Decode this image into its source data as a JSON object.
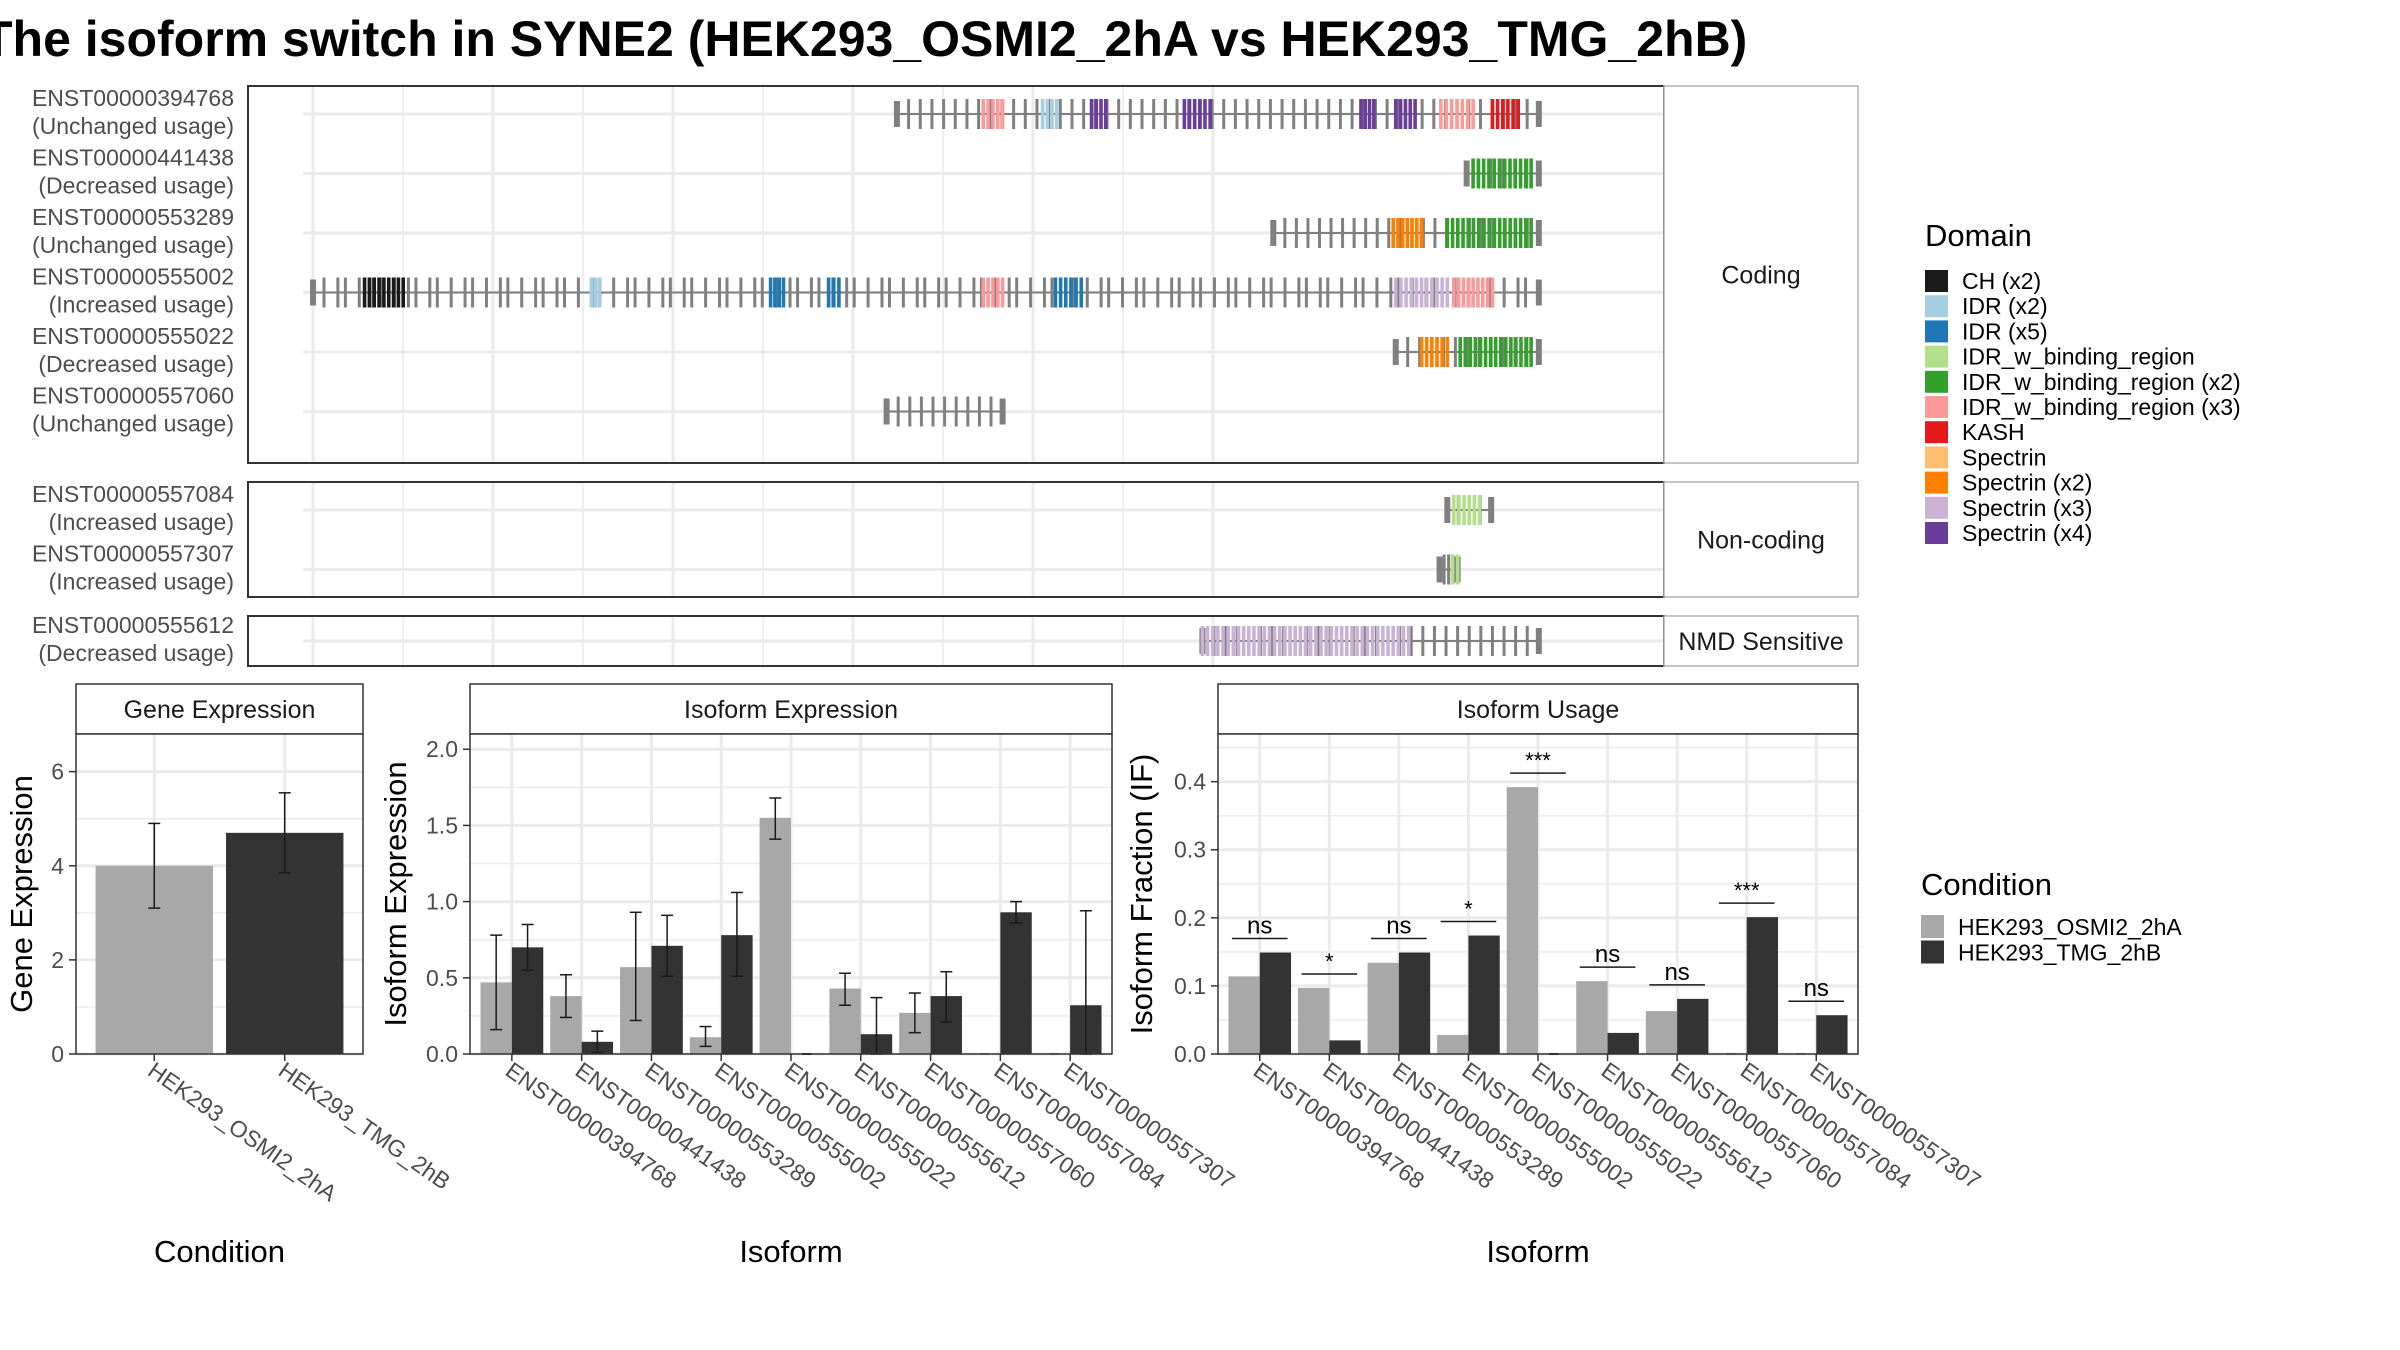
{
  "title": "The isoform switch in SYNE2 (HEK293_OSMI2_2hA vs HEK293_TMG_2hB)",
  "colors": {
    "cond1": "#a8a8a8",
    "cond2": "#333333",
    "exon": "#808080",
    "intron": "#808080",
    "grid": "#ebebeb",
    "strip_bg": "#ffffff"
  },
  "structure": {
    "axis_range": [
      0,
      1000
    ],
    "facets": [
      {
        "label": "Coding",
        "rows": [
          {
            "id": "ENST00000394768",
            "usage": "(Unchanged usage)",
            "start": 453,
            "end": 951,
            "domains": [
              [
                520,
                535,
                "IDR_w_binding_region (x3)"
              ],
              [
                566,
                577,
                "IDR (x2)"
              ],
              [
                604,
                615,
                "Spectrin (x4)"
              ],
              [
                676,
                696,
                "Spectrin (x4)"
              ],
              [
                813,
                823,
                "Spectrin (x4)"
              ],
              [
                840,
                855,
                "Spectrin (x4)"
              ],
              [
                875,
                900,
                "IDR_w_binding_region (x3)"
              ],
              [
                915,
                935,
                "KASH"
              ]
            ]
          },
          {
            "id": "ENST00000441438",
            "usage": "(Decreased usage)",
            "start": 895,
            "end": 951,
            "domains": [
              [
                900,
                945,
                "IDR_w_binding_region (x2)"
              ]
            ]
          },
          {
            "id": "ENST00000553289",
            "usage": "(Unchanged usage)",
            "start": 745,
            "end": 951,
            "domains": [
              [
                838,
                860,
                "Spectrin (x2)"
              ],
              [
                880,
                945,
                "IDR_w_binding_region (x2)"
              ]
            ]
          },
          {
            "id": "ENST00000555002",
            "usage": "(Increased usage)",
            "start": 0,
            "end": 951,
            "domains": [
              [
                40,
                70,
                "CH (x2)"
              ],
              [
                216,
                222,
                "IDR (x2)"
              ],
              [
                355,
                365,
                "IDR (x5)"
              ],
              [
                400,
                408,
                "IDR (x5)"
              ],
              [
                520,
                535,
                "IDR_w_binding_region (x3)"
              ],
              [
                576,
                596,
                "IDR (x5)"
              ],
              [
                840,
                880,
                "Spectrin (x3)"
              ],
              [
                885,
                915,
                "IDR_w_binding_region (x3)"
              ]
            ]
          },
          {
            "id": "ENST00000555022",
            "usage": "(Decreased usage)",
            "start": 840,
            "end": 951,
            "domains": [
              [
                860,
                880,
                "Spectrin (x2)"
              ],
              [
                890,
                945,
                "IDR_w_binding_region (x2)"
              ]
            ]
          },
          {
            "id": "ENST00000557060",
            "usage": "(Unchanged usage)",
            "start": 445,
            "end": 535,
            "domains": []
          }
        ]
      },
      {
        "label": "Non-coding",
        "rows": [
          {
            "id": "ENST00000557084",
            "usage": "(Increased usage)",
            "start": 880,
            "end": 914,
            "domains": [
              [
                885,
                905,
                "IDR_w_binding_region"
              ]
            ]
          },
          {
            "id": "ENST00000557307",
            "usage": "(Increased usage)",
            "start": 874,
            "end": 888,
            "domains": [
              [
                884,
                888,
                "IDR_w_binding_region"
              ]
            ]
          }
        ]
      },
      {
        "label": "NMD Sensitive",
        "rows": [
          {
            "id": "ENST00000555612",
            "usage": "(Decreased usage)",
            "start": 690,
            "end": 951,
            "domains": [
              [
                690,
                850,
                "Spectrin (x3)"
              ]
            ]
          }
        ]
      }
    ]
  },
  "legend_domain": {
    "title": "Domain",
    "items": [
      {
        "label": "CH (x2)",
        "color": "#1a1a1a"
      },
      {
        "label": "IDR (x2)",
        "color": "#a6cee3"
      },
      {
        "label": "IDR (x5)",
        "color": "#1f78b4"
      },
      {
        "label": "IDR_w_binding_region",
        "color": "#b2df8a"
      },
      {
        "label": "IDR_w_binding_region (x2)",
        "color": "#33a02c"
      },
      {
        "label": "IDR_w_binding_region (x3)",
        "color": "#fb9a99"
      },
      {
        "label": "KASH",
        "color": "#e31a1c"
      },
      {
        "label": "Spectrin",
        "color": "#fdbf6f"
      },
      {
        "label": "Spectrin (x2)",
        "color": "#ff7f00"
      },
      {
        "label": "Spectrin (x3)",
        "color": "#cab2d6"
      },
      {
        "label": "Spectrin (x4)",
        "color": "#6a3d9a"
      }
    ]
  },
  "legend_condition": {
    "title": "Condition",
    "items": [
      {
        "label": "HEK293_OSMI2_2hA",
        "color": "#a8a8a8"
      },
      {
        "label": "HEK293_TMG_2hB",
        "color": "#333333"
      }
    ]
  },
  "chart_data": [
    {
      "type": "bar",
      "title": "Gene Expression",
      "xlabel": "Condition",
      "ylabel": "Gene Expression",
      "ylim": [
        0,
        6.8
      ],
      "yticks": [
        0,
        2,
        4,
        6
      ],
      "categories": [
        "HEK293_OSMI2_2hA",
        "HEK293_TMG_2hB"
      ],
      "values": [
        4.0,
        4.7
      ],
      "error": [
        [
          3.1,
          4.9
        ],
        [
          3.85,
          5.55
        ]
      ]
    },
    {
      "type": "bar",
      "title": "Isoform Expression",
      "xlabel": "Isoform",
      "ylabel": "Isoform Expression",
      "ylim": [
        0,
        2.1
      ],
      "yticks": [
        "0.0",
        "0.5",
        "1.0",
        "1.5",
        "2.0"
      ],
      "categories": [
        "ENST00000394768",
        "ENST00000441438",
        "ENST00000553289",
        "ENST00000555002",
        "ENST00000555022",
        "ENST00000555612",
        "ENST00000557060",
        "ENST00000557084",
        "ENST00000557307"
      ],
      "series": [
        {
          "name": "HEK293_OSMI2_2hA",
          "values": [
            0.47,
            0.38,
            0.57,
            0.11,
            1.55,
            0.43,
            0.27,
            0.0,
            0.0
          ],
          "error": [
            [
              0.16,
              0.78
            ],
            [
              0.24,
              0.52
            ],
            [
              0.22,
              0.93
            ],
            [
              0.05,
              0.18
            ],
            [
              1.41,
              1.68
            ],
            [
              0.32,
              0.53
            ],
            [
              0.14,
              0.4
            ],
            [
              0,
              0
            ],
            [
              0,
              0
            ]
          ]
        },
        {
          "name": "HEK293_TMG_2hB",
          "values": [
            0.7,
            0.08,
            0.71,
            0.78,
            0.0,
            0.13,
            0.38,
            0.93,
            0.32
          ],
          "error": [
            [
              0.55,
              0.85
            ],
            [
              0.01,
              0.15
            ],
            [
              0.51,
              0.91
            ],
            [
              0.51,
              1.06
            ],
            [
              0,
              0
            ],
            [
              0.0,
              0.37
            ],
            [
              0.21,
              0.54
            ],
            [
              0.86,
              1.0
            ],
            [
              0.0,
              0.94
            ]
          ]
        }
      ]
    },
    {
      "type": "bar",
      "title": "Isoform Usage",
      "xlabel": "Isoform",
      "ylabel": "Isoform Fraction (IF)",
      "ylim": [
        0,
        0.47
      ],
      "yticks": [
        "0.0",
        "0.1",
        "0.2",
        "0.3",
        "0.4"
      ],
      "categories": [
        "ENST00000394768",
        "ENST00000441438",
        "ENST00000553289",
        "ENST00000555002",
        "ENST00000555022",
        "ENST00000555612",
        "ENST00000557060",
        "ENST00000557084",
        "ENST00000557307"
      ],
      "series": [
        {
          "name": "HEK293_OSMI2_2hA",
          "values": [
            0.114,
            0.097,
            0.134,
            0.028,
            0.392,
            0.107,
            0.063,
            0.0,
            0.0
          ]
        },
        {
          "name": "HEK293_TMG_2hB",
          "values": [
            0.149,
            0.02,
            0.149,
            0.174,
            0.0,
            0.031,
            0.081,
            0.201,
            0.057
          ]
        }
      ],
      "significance": [
        "ns",
        "*",
        "ns",
        "*",
        "***",
        "ns",
        "ns",
        "***",
        "ns"
      ]
    }
  ]
}
